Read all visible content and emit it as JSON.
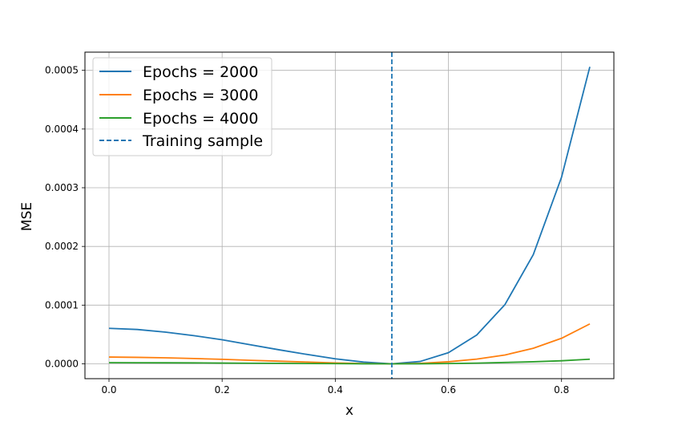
{
  "chart_data": {
    "type": "line",
    "title": "",
    "xlabel": "x",
    "ylabel": "MSE",
    "xlim": [
      -0.0425,
      0.8925
    ],
    "ylim": [
      -2.53e-05,
      0.000531
    ],
    "grid": true,
    "legend_position": "top-left",
    "x": [
      0.0,
      0.05,
      0.1,
      0.15,
      0.2,
      0.25,
      0.3,
      0.35,
      0.4,
      0.45,
      0.5,
      0.55,
      0.6,
      0.65,
      0.7,
      0.75,
      0.8,
      0.85
    ],
    "xticks": [
      0.0,
      0.2,
      0.4,
      0.6,
      0.8
    ],
    "xtick_labels": [
      "0.0",
      "0.2",
      "0.4",
      "0.6",
      "0.8"
    ],
    "yticks": [
      0.0,
      0.0001,
      0.0002,
      0.0003,
      0.0004,
      0.0005
    ],
    "ytick_labels": [
      "0.0000",
      "0.0001",
      "0.0002",
      "0.0003",
      "0.0004",
      "0.0005"
    ],
    "series": [
      {
        "name": "Epochs = 2000",
        "color": "#1f77b4",
        "style": "solid",
        "values": [
          6.05e-05,
          5.85e-05,
          5.4e-05,
          4.8e-05,
          4.1e-05,
          3.25e-05,
          2.4e-05,
          1.6e-05,
          8.5e-06,
          3e-06,
          0.0,
          4e-06,
          1.9e-05,
          4.9e-05,
          0.000101,
          0.000186,
          0.000318,
          0.000506
        ]
      },
      {
        "name": "Epochs = 3000",
        "color": "#ff7f0e",
        "style": "solid",
        "values": [
          1.15e-05,
          1.1e-05,
          1.02e-05,
          9e-06,
          7.7e-06,
          6e-06,
          4.5e-06,
          3e-06,
          1.5e-06,
          5e-07,
          0.0,
          8e-07,
          3.5e-06,
          8e-06,
          1.5e-05,
          2.65e-05,
          4.35e-05,
          6.8e-05
        ]
      },
      {
        "name": "Epochs = 4000",
        "color": "#2ca02c",
        "style": "solid",
        "values": [
          2e-06,
          1.9e-06,
          1.8e-06,
          1.6e-06,
          1.3e-06,
          1e-06,
          8e-07,
          5e-07,
          3e-07,
          1e-07,
          0.0,
          1e-07,
          5e-07,
          1.2e-06,
          2.3e-06,
          3.5e-06,
          5.2e-06,
          7.8e-06
        ]
      }
    ],
    "vlines": [
      {
        "name": "Training sample",
        "x": 0.5,
        "color": "#1f77b4",
        "style": "dashed"
      }
    ]
  }
}
